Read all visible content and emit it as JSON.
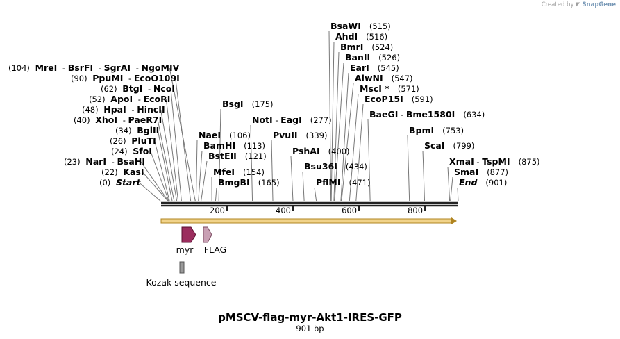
{
  "header": {
    "created_by": "Created by",
    "brand": "SnapGene"
  },
  "map": {
    "title": "pMSCV-flag-myr-Akt1-IRES-GFP",
    "length_label": "901 bp",
    "length_bp": 901
  },
  "ruler": {
    "ticks": [
      200,
      400,
      600,
      800
    ]
  },
  "sites": [
    {
      "pos": "(0)",
      "bp": 0,
      "names": [
        "Start"
      ],
      "italic": true
    },
    {
      "pos": "(22)",
      "bp": 22,
      "names": [
        "KasI"
      ]
    },
    {
      "pos": "(23)",
      "bp": 23,
      "names": [
        "NarI",
        "BsaHI"
      ]
    },
    {
      "pos": "(24)",
      "bp": 24,
      "names": [
        "SfoI"
      ]
    },
    {
      "pos": "(26)",
      "bp": 26,
      "names": [
        "PluTI"
      ]
    },
    {
      "pos": "(34)",
      "bp": 34,
      "names": [
        "BglII"
      ]
    },
    {
      "pos": "(40)",
      "bp": 40,
      "names": [
        "XhoI",
        "PaeR7I"
      ]
    },
    {
      "pos": "(48)",
      "bp": 48,
      "names": [
        "HpaI",
        "HincII"
      ]
    },
    {
      "pos": "(52)",
      "bp": 52,
      "names": [
        "ApoI",
        "EcoRI"
      ]
    },
    {
      "pos": "(62)",
      "bp": 62,
      "names": [
        "BtgI",
        "NcoI"
      ]
    },
    {
      "pos": "(90)",
      "bp": 90,
      "names": [
        "PpuMI",
        "EcoO109I"
      ]
    },
    {
      "pos": "(104)",
      "bp": 104,
      "names": [
        "MreI",
        "BsrFI",
        "SgrAI",
        "NgoMIV"
      ]
    },
    {
      "pos": "(106)",
      "bp": 106,
      "names": [
        "NaeI"
      ]
    },
    {
      "pos": "(113)",
      "bp": 113,
      "names": [
        "BamHI"
      ]
    },
    {
      "pos": "(121)",
      "bp": 121,
      "names": [
        "BstEII"
      ]
    },
    {
      "pos": "(154)",
      "bp": 154,
      "names": [
        "MfeI"
      ]
    },
    {
      "pos": "(165)",
      "bp": 165,
      "names": [
        "BmgBI"
      ]
    },
    {
      "pos": "(175)",
      "bp": 175,
      "names": [
        "BsgI"
      ]
    },
    {
      "pos": "(277)",
      "bp": 277,
      "names": [
        "NotI",
        "EagI"
      ]
    },
    {
      "pos": "(339)",
      "bp": 339,
      "names": [
        "PvuII"
      ]
    },
    {
      "pos": "(400)",
      "bp": 400,
      "names": [
        "PshAI"
      ]
    },
    {
      "pos": "(434)",
      "bp": 434,
      "names": [
        "Bsu36I"
      ]
    },
    {
      "pos": "(471)",
      "bp": 471,
      "names": [
        "PflMI"
      ]
    },
    {
      "pos": "(515)",
      "bp": 515,
      "names": [
        "BsaWI"
      ]
    },
    {
      "pos": "(516)",
      "bp": 516,
      "names": [
        "AhdI"
      ]
    },
    {
      "pos": "(524)",
      "bp": 524,
      "names": [
        "BmrI"
      ]
    },
    {
      "pos": "(526)",
      "bp": 526,
      "names": [
        "BanII"
      ]
    },
    {
      "pos": "(545)",
      "bp": 545,
      "names": [
        "EarI"
      ]
    },
    {
      "pos": "(547)",
      "bp": 547,
      "names": [
        "AlwNI"
      ]
    },
    {
      "pos": "(571)",
      "bp": 571,
      "names": [
        "MscI *"
      ]
    },
    {
      "pos": "(591)",
      "bp": 591,
      "names": [
        "EcoP15I"
      ]
    },
    {
      "pos": "(634)",
      "bp": 634,
      "names": [
        "BaeGI",
        "Bme1580I"
      ]
    },
    {
      "pos": "(753)",
      "bp": 753,
      "names": [
        "BpmI"
      ]
    },
    {
      "pos": "(799)",
      "bp": 799,
      "names": [
        "ScaI"
      ]
    },
    {
      "pos": "(875)",
      "bp": 875,
      "names": [
        "XmaI",
        "TspMI"
      ]
    },
    {
      "pos": "(877)",
      "bp": 877,
      "names": [
        "SmaI"
      ]
    },
    {
      "pos": "(901)",
      "bp": 901,
      "names": [
        "End"
      ],
      "italic": true
    }
  ],
  "features": [
    {
      "label": "myr",
      "color": "#9b2d5e"
    },
    {
      "label": "FLAG",
      "color": "#c9a0b4"
    },
    {
      "label": "Kozak sequence",
      "color": "#9a9a9a"
    }
  ],
  "orf_color": "#e8b04a",
  "line_color": "#222222"
}
